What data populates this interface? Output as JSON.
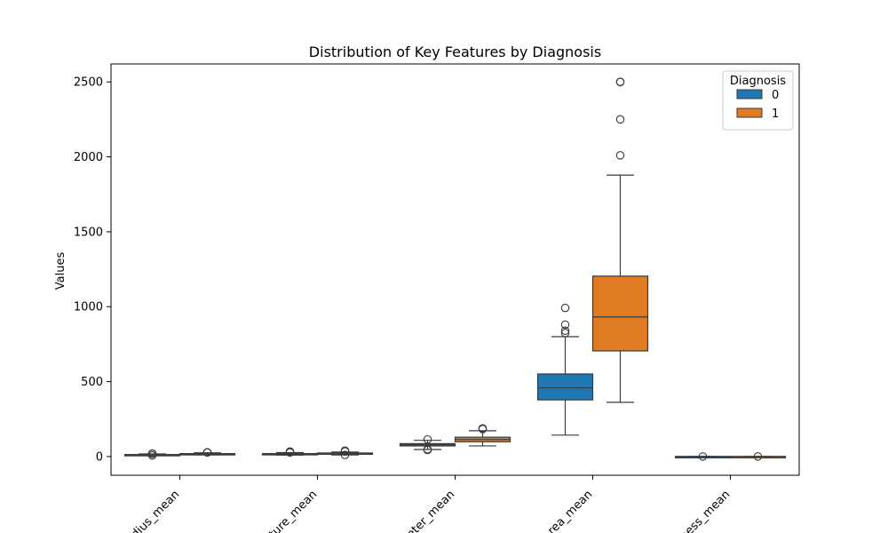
{
  "chart_data": {
    "type": "box",
    "title": "Distribution of Key Features by Diagnosis",
    "xlabel": "",
    "ylabel": "Values",
    "ylim": [
      -125,
      2620
    ],
    "yticks": [
      0,
      500,
      1000,
      1500,
      2000,
      2500
    ],
    "categories": [
      "radius_mean",
      "texture_mean",
      "perimeter_mean",
      "area_mean",
      "smoothness_mean"
    ],
    "categories_visible": [
      "dius_mean",
      "ture_mean",
      "eter_mean",
      "rea_mean",
      "ness_mean"
    ],
    "legend": {
      "title": "Diagnosis",
      "position": "top-right"
    },
    "grid": false,
    "series": [
      {
        "name": "0",
        "color": "#1f77b4",
        "boxes": [
          {
            "q1": 10.5,
            "median": 12.2,
            "q3": 13.4,
            "whisker_low": 7,
            "whisker_high": 17.5,
            "outliers": [
              6.9,
              20.6,
              17.9
            ]
          },
          {
            "q1": 15.1,
            "median": 17.4,
            "q3": 19.8,
            "whisker_low": 10,
            "whisker_high": 26,
            "outliers": [
              27,
              33.8,
              30
            ]
          },
          {
            "q1": 70.8,
            "median": 78,
            "q3": 86.1,
            "whisker_low": 47,
            "whisker_high": 108,
            "outliers": [
              114,
              43.8,
              47.9
            ]
          },
          {
            "q1": 378,
            "median": 458,
            "q3": 551,
            "whisker_low": 143,
            "whisker_high": 800,
            "outliers": [
              992,
              880,
              840,
              824
            ]
          },
          {
            "q1": 0.086,
            "median": 0.091,
            "q3": 0.1,
            "whisker_low": 0.06,
            "whisker_high": 0.12,
            "outliers": [
              0.16
            ]
          }
        ]
      },
      {
        "name": "1",
        "color": "#e07b24",
        "boxes": [
          {
            "q1": 15.1,
            "median": 17.3,
            "q3": 19.6,
            "whisker_low": 11,
            "whisker_high": 25,
            "outliers": [
              27.2,
              28.1,
              26.5
            ]
          },
          {
            "q1": 19.3,
            "median": 21.5,
            "q3": 23.8,
            "whisker_low": 10.4,
            "whisker_high": 30,
            "outliers": [
              39.3,
              33.8,
              10.4
            ]
          },
          {
            "q1": 98.6,
            "median": 114,
            "q3": 129,
            "whisker_low": 71,
            "whisker_high": 172,
            "outliers": [
              188,
              183,
              186
            ]
          },
          {
            "q1": 705,
            "median": 932,
            "q3": 1204,
            "whisker_low": 362,
            "whisker_high": 1878,
            "outliers": [
              2010,
              2250,
              2499,
              2501
            ]
          },
          {
            "q1": 0.095,
            "median": 0.102,
            "q3": 0.11,
            "whisker_low": 0.074,
            "whisker_high": 0.14,
            "outliers": [
              0.145
            ]
          }
        ]
      }
    ]
  }
}
